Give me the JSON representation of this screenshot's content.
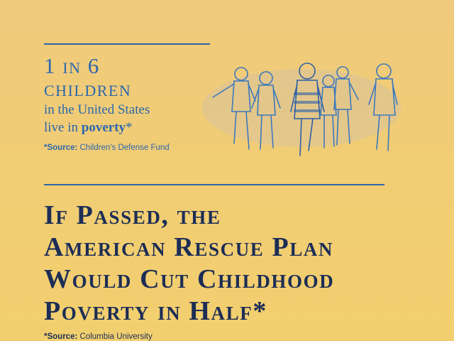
{
  "stat": {
    "headline_line1": "1 in 6",
    "headline_line2": "children",
    "line3": "in the United States",
    "line4_prefix": "live in ",
    "line4_bold": "poverty",
    "line4_suffix": "*",
    "source_label": "*Source:",
    "source_value": " Children's Defense Fund"
  },
  "illustration": {
    "icon": "children-walking-illustration"
  },
  "main": {
    "lines": [
      "If Passed, the",
      "American Rescue Plan",
      "Would Cut Childhood",
      "Poverty in Half*"
    ],
    "source_label": "*Source:",
    "source_value": " Columbia University"
  },
  "colors": {
    "background": "#f1cd74",
    "blue": "#2c67ad",
    "navy": "#1c2d56"
  }
}
